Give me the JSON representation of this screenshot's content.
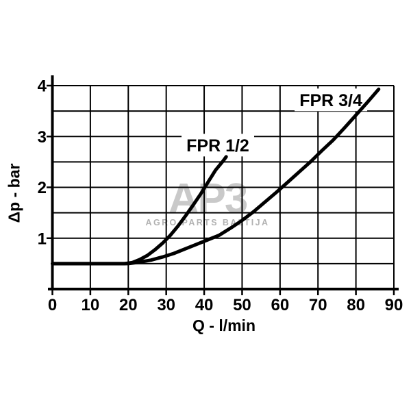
{
  "watermark": {
    "logo": "AP3",
    "subtitle": "AGRO PARTS BALTIJA",
    "logo_color": "#c9c9c9",
    "subtitle_color": "#b2b2b2"
  },
  "chart_data": {
    "type": "line",
    "title": "",
    "xlabel": "Q - l/min",
    "ylabel": "Δp - bar",
    "xlim": [
      0,
      90
    ],
    "ylim": [
      0,
      4
    ],
    "grid": true,
    "x_grid_step": 10,
    "y_grid_step": 0.5,
    "line_color": "#000000",
    "grid_color": "#000000",
    "x_ticks": [
      {
        "value": 0,
        "label": "0"
      },
      {
        "value": 10,
        "label": "10"
      },
      {
        "value": 20,
        "label": "20"
      },
      {
        "value": 30,
        "label": "30"
      },
      {
        "value": 40,
        "label": "40"
      },
      {
        "value": 50,
        "label": "50"
      },
      {
        "value": 60,
        "label": "60"
      },
      {
        "value": 70,
        "label": "70"
      },
      {
        "value": 80,
        "label": "80"
      },
      {
        "value": 90,
        "label": "90"
      }
    ],
    "y_ticks": [
      {
        "value": 1,
        "label": "1"
      },
      {
        "value": 2,
        "label": "2"
      },
      {
        "value": 3,
        "label": "3"
      },
      {
        "value": 4,
        "label": "4"
      }
    ],
    "series": [
      {
        "name": "FPR 1/2",
        "label_anchor": {
          "q": 43.6,
          "p": 2.83
        },
        "points": [
          [
            0,
            0.5
          ],
          [
            8,
            0.5
          ],
          [
            14,
            0.5
          ],
          [
            19,
            0.5
          ],
          [
            21,
            0.52
          ],
          [
            23,
            0.58
          ],
          [
            25,
            0.66
          ],
          [
            27,
            0.77
          ],
          [
            29,
            0.9
          ],
          [
            31,
            1.05
          ],
          [
            33,
            1.23
          ],
          [
            35,
            1.43
          ],
          [
            37,
            1.64
          ],
          [
            39,
            1.86
          ],
          [
            41,
            2.1
          ],
          [
            43,
            2.34
          ],
          [
            45,
            2.52
          ],
          [
            45.8,
            2.6
          ]
        ]
      },
      {
        "name": "FPR 3/4",
        "label_anchor": {
          "q": 73.4,
          "p": 3.72
        },
        "points": [
          [
            0,
            0.5
          ],
          [
            8,
            0.5
          ],
          [
            16,
            0.5
          ],
          [
            20,
            0.5
          ],
          [
            23,
            0.53
          ],
          [
            26,
            0.57
          ],
          [
            29,
            0.63
          ],
          [
            32,
            0.7
          ],
          [
            35,
            0.79
          ],
          [
            38,
            0.88
          ],
          [
            41,
            0.97
          ],
          [
            44,
            1.06
          ],
          [
            47,
            1.2
          ],
          [
            50,
            1.35
          ],
          [
            53,
            1.52
          ],
          [
            56,
            1.71
          ],
          [
            59,
            1.9
          ],
          [
            62,
            2.1
          ],
          [
            65,
            2.3
          ],
          [
            68,
            2.5
          ],
          [
            71,
            2.72
          ],
          [
            74,
            2.93
          ],
          [
            77,
            3.17
          ],
          [
            80,
            3.42
          ],
          [
            83,
            3.67
          ],
          [
            86,
            3.93
          ]
        ]
      }
    ]
  }
}
